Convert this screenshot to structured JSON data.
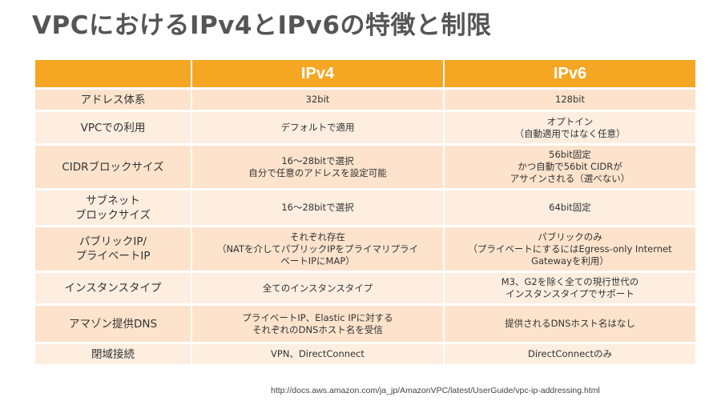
{
  "title": "VPCにおけるIPv4とIPv6の特徴と制限",
  "table": {
    "headers": [
      "",
      "IPv4",
      "IPv6"
    ],
    "rows": [
      {
        "label": "アドレス体系",
        "ipv4": "32bit",
        "ipv6": "128bit"
      },
      {
        "label": "VPCでの利用",
        "ipv4": "デフォルトで適用",
        "ipv6": "オプトイン\n（自動適用ではなく任意）"
      },
      {
        "label": "CIDRブロックサイズ",
        "ipv4": "16～28bitで選択\n自分で任意のアドレスを設定可能",
        "ipv6": "56bit固定\nかつ自動で56bit CIDRが\nアサインされる（選べない）"
      },
      {
        "label": "サブネット\nブロックサイズ",
        "ipv4": "16～28bitで選択",
        "ipv6": "64bit固定"
      },
      {
        "label": "パブリックIP/\nプライベートIP",
        "ipv4": "それぞれ存在\n（NATを介してパブリックIPをプライマリプライ\nベートIPにMAP）",
        "ipv6": "パブリックのみ\n（プライベートにするにはEgress-only Internet\nGatewayを利用）"
      },
      {
        "label": "インスタンスタイプ",
        "ipv4": "全てのインスタンスタイプ",
        "ipv6": "M3、G2を除く全ての現行世代の\nインスタンスタイプでサポート"
      },
      {
        "label": "アマゾン提供DNS",
        "ipv4": "プライベートIP、Elastic IPに対する\nそれぞれのDNSホスト名を受信",
        "ipv6": "提供されるDNSホスト名はなし"
      },
      {
        "label": "閉域接続",
        "ipv4": "VPN、DirectConnect",
        "ipv6": "DirectConnectのみ"
      }
    ]
  },
  "source_url": "http://docs.aws.amazon.com/ja_jp/AmazonVPC/latest/UserGuide/vpc-ip-addressing.html",
  "colors": {
    "header_bg": "#f5a623",
    "row_bg_light": "#fdeee0",
    "row_bg_dark": "#fde3cc",
    "title": "#555555"
  }
}
